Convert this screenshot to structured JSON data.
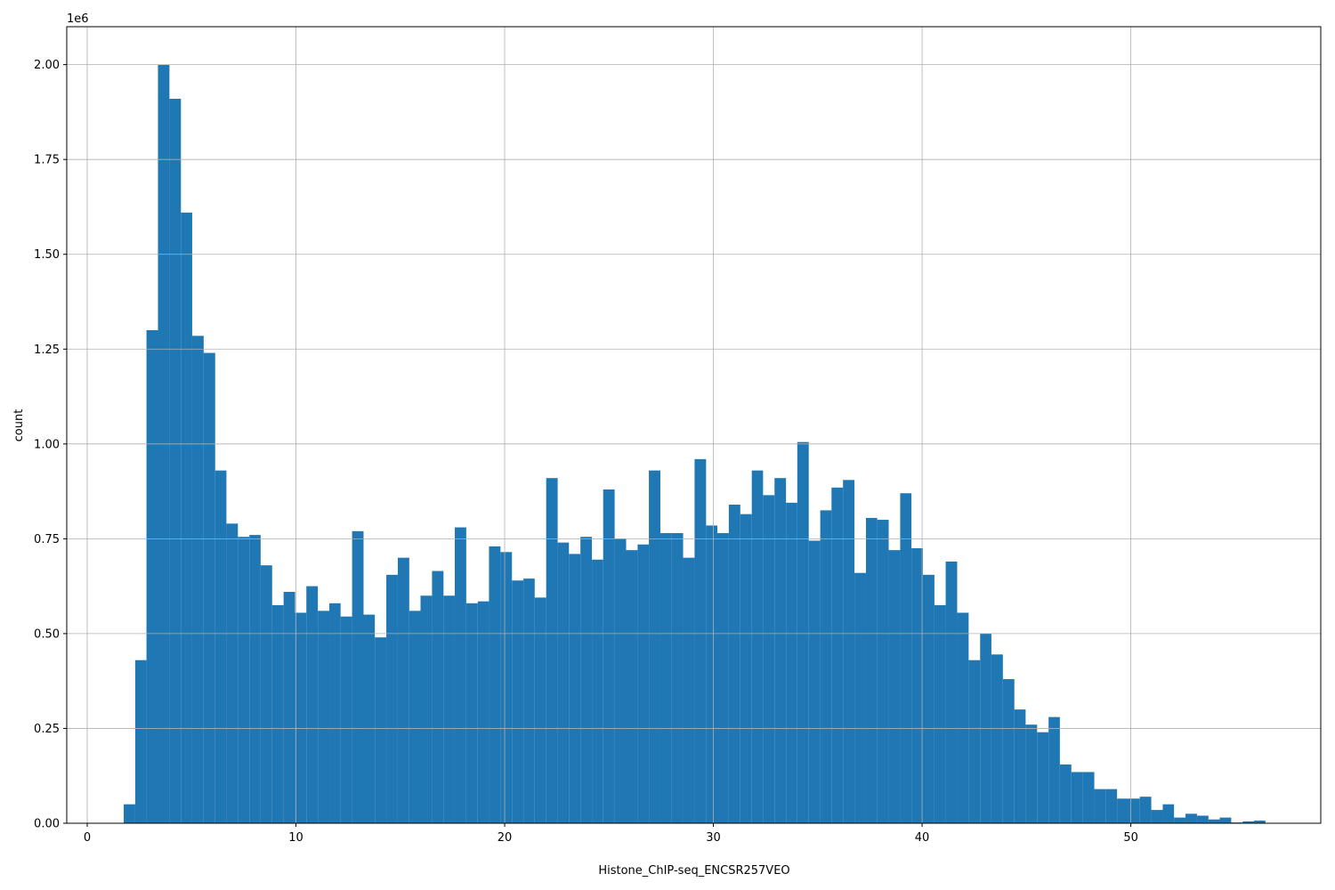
{
  "chart_data": {
    "type": "histogram",
    "x_label": "Histone_ChIP-seq_ENCSR257VEO",
    "y_label": "count",
    "y_offset_label": "1e6",
    "color": "#1f77b4",
    "grid": true,
    "bins": [
      1.75,
      2.3,
      2.84,
      3.39,
      3.94,
      4.49,
      5.03,
      5.58,
      6.13,
      6.67,
      7.22,
      7.77,
      8.31,
      8.86,
      9.41,
      9.96,
      10.5,
      11.05,
      11.6,
      12.14,
      12.69,
      13.24,
      13.78,
      14.33,
      14.88,
      15.43,
      15.97,
      16.52,
      17.07,
      17.61,
      18.16,
      18.71,
      19.25,
      19.8,
      20.35,
      20.9,
      21.44,
      21.99,
      22.54,
      23.08,
      23.63,
      24.18,
      24.72,
      25.27,
      25.82,
      26.37,
      26.91,
      27.46,
      28.01,
      28.55,
      29.1,
      29.65,
      30.19,
      30.74,
      31.29,
      31.84,
      32.38,
      32.93,
      33.48,
      34.02,
      34.57,
      35.12,
      35.66,
      36.21,
      36.76,
      37.31,
      37.85,
      38.4,
      38.95,
      39.49,
      40.04,
      40.59,
      41.13,
      41.68,
      42.23,
      42.78,
      43.32,
      43.87,
      44.42,
      44.96,
      45.51,
      46.06,
      46.6,
      47.15,
      47.7,
      48.25,
      48.79,
      49.34,
      49.89,
      50.43,
      50.98,
      51.53,
      52.07,
      52.62,
      53.17,
      53.72,
      54.26,
      54.81,
      55.36,
      55.9,
      56.45
    ],
    "counts": [
      50000,
      430000,
      1300000,
      2000000,
      1910000,
      1610000,
      1285000,
      1240000,
      930000,
      790000,
      755000,
      760000,
      680000,
      575000,
      610000,
      555000,
      625000,
      560000,
      580000,
      545000,
      770000,
      550000,
      490000,
      655000,
      700000,
      560000,
      600000,
      665000,
      600000,
      780000,
      580000,
      585000,
      730000,
      715000,
      640000,
      645000,
      595000,
      910000,
      740000,
      710000,
      755000,
      695000,
      880000,
      750000,
      720000,
      735000,
      930000,
      765000,
      765000,
      700000,
      960000,
      785000,
      765000,
      840000,
      815000,
      930000,
      865000,
      910000,
      845000,
      1005000,
      745000,
      825000,
      885000,
      905000,
      660000,
      805000,
      800000,
      720000,
      870000,
      725000,
      655000,
      575000,
      690000,
      555000,
      430000,
      500000,
      445000,
      380000,
      300000,
      260000,
      240000,
      280000,
      155000,
      135000,
      135000,
      90000,
      90000,
      65000,
      65000,
      70000,
      35000,
      50000,
      15000,
      25000,
      20000,
      10000,
      15000,
      2000,
      5000,
      7000
    ],
    "xlim": [
      -0.98,
      59.1
    ],
    "ylim": [
      0,
      2100000
    ],
    "xticks": [
      0,
      10,
      20,
      30,
      40,
      50
    ],
    "yticks": [
      {
        "value": 0,
        "label": "0.00"
      },
      {
        "value": 250000,
        "label": "0.25"
      },
      {
        "value": 500000,
        "label": "0.50"
      },
      {
        "value": 750000,
        "label": "0.75"
      },
      {
        "value": 1000000,
        "label": "1.00"
      },
      {
        "value": 1250000,
        "label": "1.25"
      },
      {
        "value": 1500000,
        "label": "1.50"
      },
      {
        "value": 1750000,
        "label": "1.75"
      },
      {
        "value": 2000000,
        "label": "2.00"
      }
    ]
  }
}
